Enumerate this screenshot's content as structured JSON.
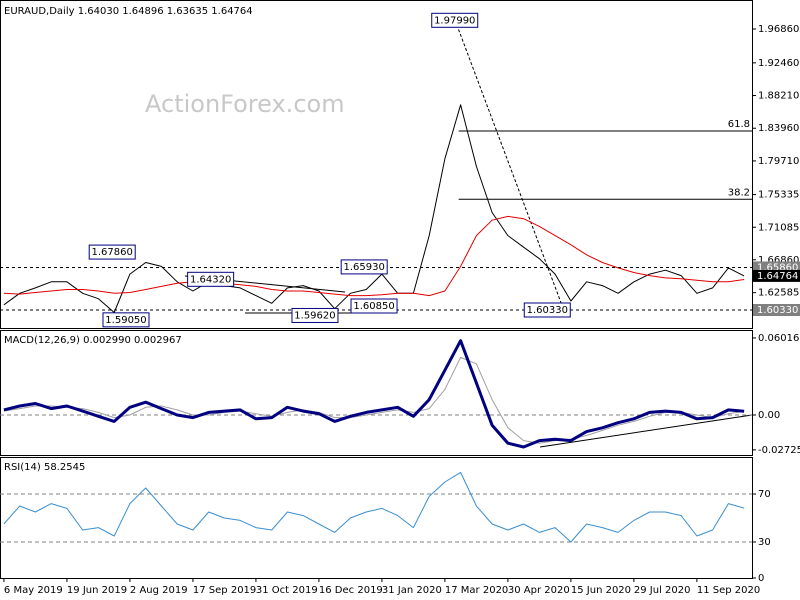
{
  "chart_data": [
    {
      "type": "line",
      "title": "EURAUD,Daily  1.64030 1.64896 1.63635 1.64764",
      "watermark": "ActionForex.com",
      "x": [
        0,
        8,
        16,
        24,
        32,
        40,
        48,
        56,
        64,
        72,
        80,
        88,
        96,
        104,
        112,
        120,
        128,
        136,
        144,
        152,
        160,
        168,
        176,
        184,
        192,
        200,
        208,
        216,
        224,
        232,
        240,
        248,
        256,
        264,
        272,
        280,
        288,
        296,
        304,
        312,
        320,
        328,
        336,
        344,
        352,
        360,
        368,
        376
      ],
      "xlim": [
        -2,
        380
      ],
      "ylim": [
        1.5799,
        2.0037
      ],
      "yticks": [
        {
          "value": 1.9686,
          "label": "1.96860"
        },
        {
          "value": 1.9246,
          "label": "1.92460"
        },
        {
          "value": 1.8821,
          "label": "1.88210"
        },
        {
          "value": 1.8396,
          "label": "1.83960"
        },
        {
          "value": 1.7971,
          "label": "1.79710"
        },
        1.75335,
        1.71085,
        {
          "value": 1.6686,
          "label": "1.66860"
        },
        1.62585
      ],
      "series": [
        {
          "color": "#000000",
          "width": 1,
          "values": [
            1.61,
            1.625,
            1.632,
            1.64,
            1.64,
            1.625,
            1.618,
            1.6,
            1.65,
            1.665,
            1.66,
            1.64,
            1.628,
            1.64,
            1.635,
            1.632,
            1.622,
            1.612,
            1.632,
            1.635,
            1.628,
            1.605,
            1.625,
            1.63,
            1.65,
            1.625,
            1.625,
            1.7,
            1.8,
            1.87,
            1.79,
            1.73,
            1.7,
            1.685,
            1.67,
            1.65,
            1.615,
            1.64,
            1.635,
            1.625,
            1.64,
            1.65,
            1.655,
            1.648,
            1.625,
            1.632,
            1.658,
            1.64764
          ]
        },
        {
          "color": "#e00000",
          "width": 1,
          "values": [
            1.625,
            1.624,
            1.626,
            1.628,
            1.63,
            1.63,
            1.628,
            1.625,
            1.626,
            1.63,
            1.634,
            1.638,
            1.64,
            1.639,
            1.638,
            1.636,
            1.634,
            1.63,
            1.628,
            1.628,
            1.626,
            1.624,
            1.622,
            1.622,
            1.623,
            1.625,
            1.625,
            1.622,
            1.628,
            1.66,
            1.7,
            1.72,
            1.725,
            1.722,
            1.712,
            1.7,
            1.688,
            1.675,
            1.665,
            1.658,
            1.652,
            1.648,
            1.645,
            1.644,
            1.642,
            1.64,
            1.64,
            1.643
          ]
        }
      ],
      "price_markers": [
        {
          "label": "1.65860",
          "value": 1.6586,
          "color": "#808080",
          "line": true
        },
        {
          "label": "1.64764",
          "value": 1.64764,
          "color": "#000000",
          "line": false
        },
        {
          "label": "1.60330",
          "value": 1.6033,
          "color": "#808080",
          "line": true
        }
      ],
      "annotations": [
        {
          "label": "1.97990",
          "value": 1.9799,
          "x": 229
        },
        {
          "label": "1.67860",
          "value": 1.6786,
          "x": 55
        },
        {
          "label": "1.64320",
          "value": 1.6432,
          "x": 105
        },
        {
          "label": "1.65930",
          "value": 1.6593,
          "x": 183
        },
        {
          "label": "1.59050",
          "value": 1.5905,
          "x": 62
        },
        {
          "label": "1.59620",
          "value": 1.5962,
          "x": 158
        },
        {
          "label": "1.60850",
          "value": 1.6085,
          "x": 188
        },
        {
          "label": "1.60330",
          "value": 1.6033,
          "x": 276
        }
      ],
      "fib_levels": [
        {
          "label": "61.8",
          "value": 1.836,
          "x": 231
        },
        {
          "label": "38.2",
          "value": 1.7472,
          "x": 231
        }
      ]
    },
    {
      "type": "line",
      "title": "MACD(12,26,9) 0.002990 0.002967",
      "x": [
        0,
        8,
        16,
        24,
        32,
        40,
        48,
        56,
        64,
        72,
        80,
        88,
        96,
        104,
        112,
        120,
        128,
        136,
        144,
        152,
        160,
        168,
        176,
        184,
        192,
        200,
        208,
        216,
        224,
        232,
        240,
        248,
        256,
        264,
        272,
        280,
        288,
        296,
        304,
        312,
        320,
        328,
        336,
        344,
        352,
        360,
        368,
        376
      ],
      "xlim": [
        -2,
        380
      ],
      "ylim": [
        -0.03125,
        0.0656
      ],
      "yticks": [
        0.060165,
        {
          "value": 0,
          "label": "0.00"
        },
        -0.02725
      ],
      "levels": [
        0
      ],
      "series": [
        {
          "color": "#a0a0a0",
          "width": 1,
          "values": [
            0.003,
            0.005,
            0.007,
            0.007,
            0.006,
            0.005,
            0.002,
            -0.002,
            0.0,
            0.006,
            0.007,
            0.004,
            0.0,
            0.0,
            0.002,
            0.003,
            0.001,
            -0.001,
            0.002,
            0.004,
            0.002,
            -0.002,
            -0.002,
            0.0,
            0.002,
            0.004,
            0.002,
            0.005,
            0.02,
            0.045,
            0.04,
            0.012,
            -0.01,
            -0.02,
            -0.022,
            -0.02,
            -0.019,
            -0.016,
            -0.012,
            -0.008,
            -0.005,
            -0.001,
            0.002,
            0.002,
            0.0,
            -0.002,
            0.001,
            0.002967
          ]
        },
        {
          "color": "#000080",
          "width": 3,
          "values": [
            0.004,
            0.007,
            0.009,
            0.005,
            0.007,
            0.003,
            -0.001,
            -0.005,
            0.006,
            0.01,
            0.005,
            0.0,
            -0.002,
            0.002,
            0.003,
            0.004,
            -0.003,
            -0.002,
            0.006,
            0.003,
            0.001,
            -0.005,
            -0.001,
            0.002,
            0.004,
            0.006,
            -0.001,
            0.012,
            0.035,
            0.058,
            0.025,
            -0.008,
            -0.022,
            -0.025,
            -0.02,
            -0.019,
            -0.02,
            -0.013,
            -0.01,
            -0.006,
            -0.003,
            0.002,
            0.003,
            0.002,
            -0.003,
            -0.002,
            0.004,
            0.00299
          ]
        }
      ]
    },
    {
      "type": "line",
      "title": "RSI(14) 58.2545",
      "x": [
        0,
        8,
        16,
        24,
        32,
        40,
        48,
        56,
        64,
        72,
        80,
        88,
        96,
        104,
        112,
        120,
        128,
        136,
        144,
        152,
        160,
        168,
        176,
        184,
        192,
        200,
        208,
        216,
        224,
        232,
        240,
        248,
        256,
        264,
        272,
        280,
        288,
        296,
        304,
        312,
        320,
        328,
        336,
        344,
        352,
        360,
        368,
        376
      ],
      "xlim": [
        -2,
        380
      ],
      "ylim": [
        0,
        100
      ],
      "yticks": [
        70,
        30,
        0
      ],
      "levels": [
        70,
        30
      ],
      "xticks": [
        {
          "value": 0,
          "label": "6 May 2019"
        },
        {
          "value": 32,
          "label": "19 Jun 2019"
        },
        {
          "value": 64,
          "label": "2 Aug 2019"
        },
        {
          "value": 96,
          "label": "17 Sep 2019"
        },
        {
          "value": 128,
          "label": "31 Oct 2019"
        },
        {
          "value": 160,
          "label": "16 Dec 2019"
        },
        {
          "value": 192,
          "label": "31 Jan 2020"
        },
        {
          "value": 224,
          "label": "17 Mar 2020"
        },
        {
          "value": 256,
          "label": "30 Apr 2020"
        },
        {
          "value": 288,
          "label": "15 Jun 2020"
        },
        {
          "value": 320,
          "label": "29 Jul 2020"
        },
        {
          "value": 352,
          "label": "11 Sep 2020"
        }
      ],
      "series": [
        {
          "color": "#3a8fd0",
          "width": 1,
          "values": [
            45,
            60,
            55,
            62,
            58,
            40,
            42,
            35,
            62,
            75,
            60,
            45,
            40,
            55,
            50,
            48,
            42,
            40,
            55,
            52,
            45,
            38,
            50,
            55,
            58,
            52,
            42,
            68,
            80,
            88,
            60,
            45,
            40,
            45,
            38,
            42,
            30,
            45,
            42,
            38,
            48,
            55,
            55,
            52,
            35,
            40,
            62,
            58.2545
          ]
        }
      ]
    }
  ]
}
